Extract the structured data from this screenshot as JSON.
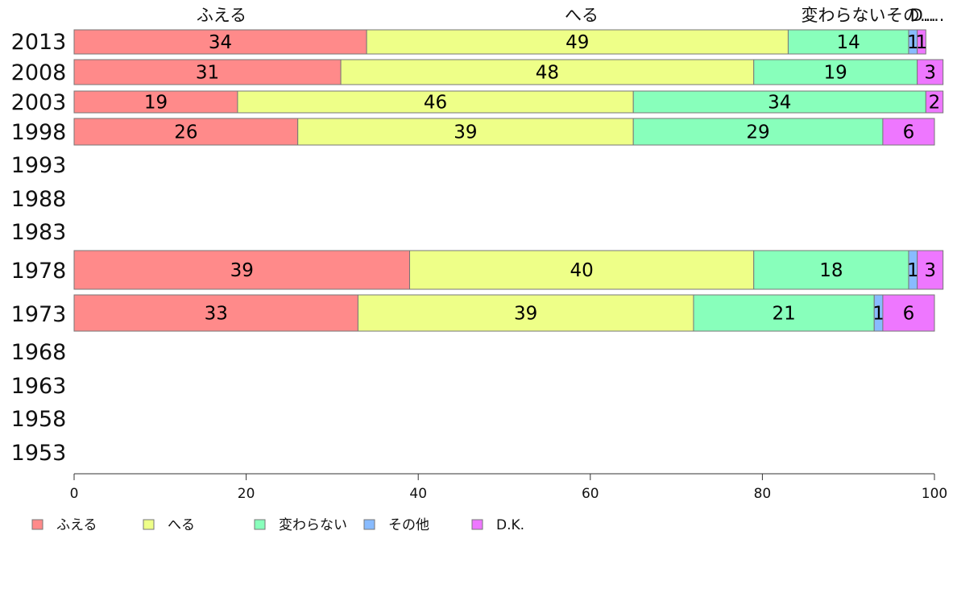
{
  "chart_data": {
    "type": "bar",
    "orientation": "horizontal",
    "stacked": true,
    "title": "",
    "xlabel": "",
    "ylabel": "",
    "xlim": [
      0,
      100
    ],
    "x_ticks": [
      0,
      20,
      40,
      60,
      80,
      100
    ],
    "grid": false,
    "legend_position": "bottom-left",
    "top_category_labels": [
      "ふえる",
      "へる",
      "変わらない",
      "その...",
      "D...."
    ],
    "years": [
      "2013",
      "2008",
      "2003",
      "1998",
      "1993",
      "1988",
      "1983",
      "1978",
      "1973",
      "1968",
      "1963",
      "1958",
      "1953"
    ],
    "series": [
      {
        "name": "ふえる",
        "color": "#ff8a8a",
        "values": [
          34,
          31,
          19,
          26,
          null,
          null,
          null,
          39,
          33,
          null,
          null,
          null,
          null
        ]
      },
      {
        "name": "へる",
        "color": "#eeff88",
        "values": [
          49,
          48,
          46,
          39,
          null,
          null,
          null,
          40,
          39,
          null,
          null,
          null,
          null
        ]
      },
      {
        "name": "変わらない",
        "color": "#88ffbb",
        "values": [
          14,
          19,
          34,
          29,
          null,
          null,
          null,
          18,
          21,
          null,
          null,
          null,
          null
        ]
      },
      {
        "name": "その他",
        "color": "#88bbff",
        "values": [
          1,
          0,
          0,
          0,
          null,
          null,
          null,
          1,
          1,
          null,
          null,
          null,
          null
        ]
      },
      {
        "name": "D.K.",
        "color": "#ee77ff",
        "values": [
          1,
          3,
          2,
          6,
          null,
          null,
          null,
          3,
          6,
          null,
          null,
          null,
          null
        ]
      }
    ]
  }
}
